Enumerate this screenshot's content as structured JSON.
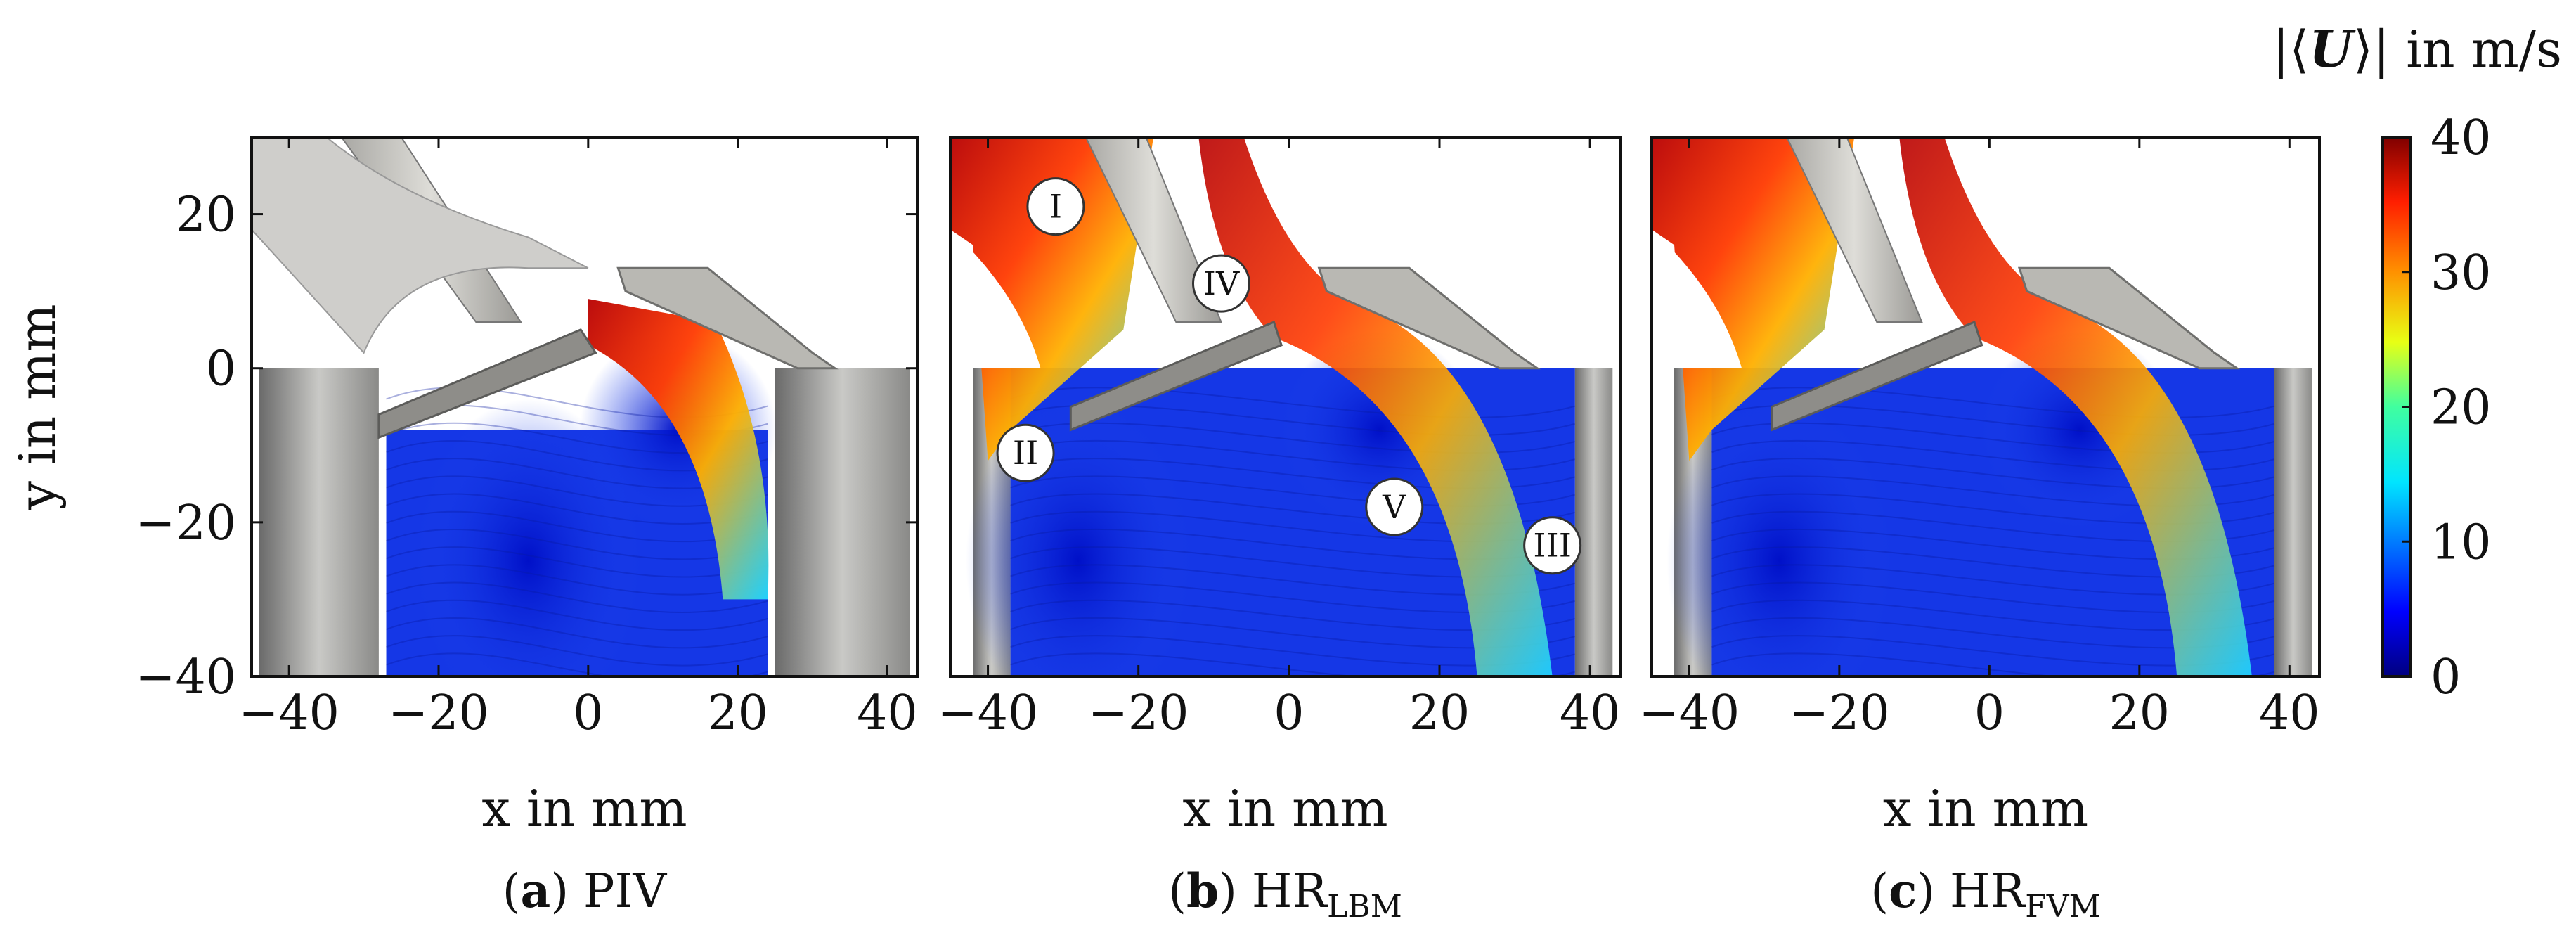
{
  "colorbar": {
    "label_prefix": "|⟨",
    "label_symbol": "U",
    "label_suffix": "⟩| in m/s",
    "ticks": [
      0,
      10,
      20,
      30,
      40
    ],
    "range": [
      0,
      40
    ]
  },
  "chart_data": [
    {
      "type": "heatmap",
      "caption_letter": "a",
      "caption_main": "PIV",
      "caption_sub": "",
      "xlabel": "x in mm",
      "ylabel": "y in mm",
      "xlim": [
        -45,
        44
      ],
      "ylim": [
        -40,
        30
      ],
      "xticks": [
        -40,
        -20,
        0,
        20,
        40
      ],
      "yticks": [
        -40,
        -20,
        0,
        20
      ],
      "markers": []
    },
    {
      "type": "heatmap",
      "caption_letter": "b",
      "caption_main": "HR",
      "caption_sub": "LBM",
      "xlabel": "x in mm",
      "ylabel": "",
      "xlim": [
        -45,
        44
      ],
      "ylim": [
        -40,
        30
      ],
      "xticks": [
        -40,
        -20,
        0,
        20,
        40
      ],
      "yticks": [],
      "markers": [
        {
          "label": "I",
          "x": -31,
          "y": 21
        },
        {
          "label": "IV",
          "x": -9,
          "y": 11
        },
        {
          "label": "II",
          "x": -35,
          "y": -11
        },
        {
          "label": "V",
          "x": 14,
          "y": -18
        },
        {
          "label": "III",
          "x": 35,
          "y": -23
        }
      ]
    },
    {
      "type": "heatmap",
      "caption_letter": "c",
      "caption_main": "HR",
      "caption_sub": "FVM",
      "xlabel": "x in mm",
      "ylabel": "",
      "xlim": [
        -45,
        44
      ],
      "ylim": [
        -40,
        30
      ],
      "xticks": [
        -40,
        -20,
        0,
        20,
        40
      ],
      "yticks": [],
      "markers": []
    }
  ]
}
